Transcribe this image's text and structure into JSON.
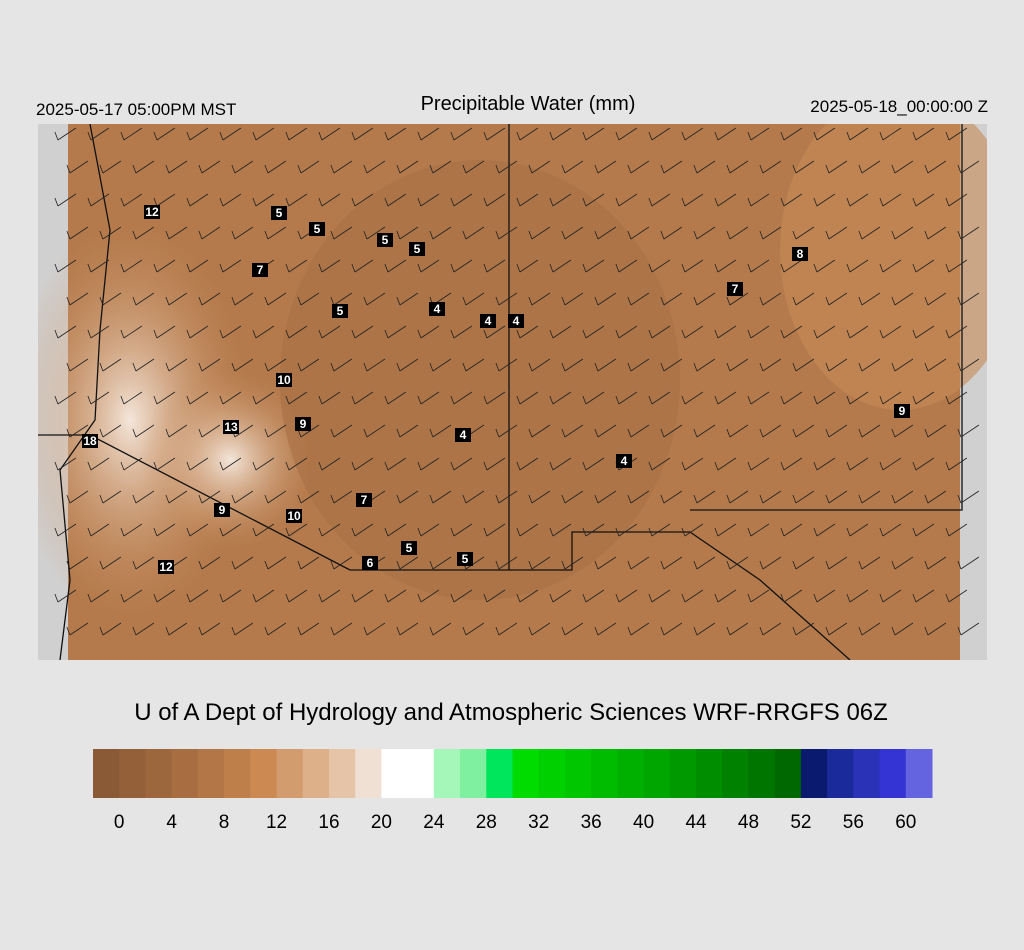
{
  "header": {
    "valid_local": "2025-05-17 05:00PM MST",
    "title": "Precipitable Water (mm)",
    "valid_utc": "2025-05-18_00:00:00 Z"
  },
  "map": {
    "station_values": [
      12,
      5,
      5,
      5,
      5,
      7,
      5,
      4,
      4,
      4,
      8,
      7,
      10,
      13,
      9,
      18,
      4,
      9,
      4,
      9,
      10,
      7,
      5,
      5,
      6,
      12
    ]
  },
  "credit": "U of A Dept of Hydrology and Atmospheric Sciences WRF-RRGFS 06Z",
  "colorbar": {
    "lim": [
      -2,
      62
    ],
    "ticks": [
      0,
      4,
      8,
      12,
      16,
      20,
      24,
      28,
      32,
      36,
      40,
      44,
      48,
      52,
      56,
      60
    ],
    "colors": [
      "#8a5a36",
      "#93603a",
      "#9d673e",
      "#a86e42",
      "#b37646",
      "#bf7f4b",
      "#cc8a52",
      "#d39c6e",
      "#ddb08a",
      "#e6c4a8",
      "#f0e0d3",
      "#ffffff",
      "#ffffff",
      "#a4f7b8",
      "#7ef0a0",
      "#00e65c",
      "#00dc00",
      "#00d000",
      "#00c600",
      "#00bc00",
      "#00b000",
      "#00a600",
      "#009a00",
      "#008e00",
      "#008200",
      "#007600",
      "#006800",
      "#0a1a6e",
      "#1a2a9a",
      "#2a32b8",
      "#3434d4",
      "#6464e0"
    ]
  }
}
